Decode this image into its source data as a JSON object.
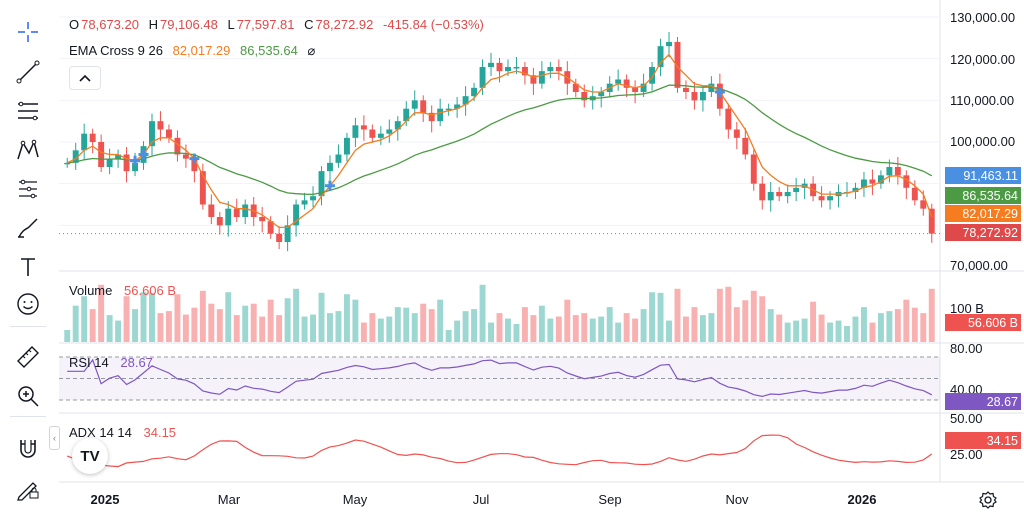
{
  "legend": {
    "ohlc": [
      {
        "key": "O",
        "value": "78,673.20"
      },
      {
        "key": "H",
        "value": "79,106.48"
      },
      {
        "key": "L",
        "value": "77,597.81"
      },
      {
        "key": "C",
        "value": "78,272.92"
      }
    ],
    "change": "-415.84 (−0.53%)",
    "ema_name": "EMA Cross 9 26",
    "ema_fast": "82,017.29",
    "ema_slow": "86,535.64",
    "ema_extra": "⌀",
    "volume_name": "Volume",
    "volume_value": "56.606 B",
    "rsi_name": "RSI 14",
    "rsi_value": "28.67",
    "adx_name": "ADX 14 14",
    "adx_value": "34.15"
  },
  "price_axis": [
    "130,000.00",
    "120,000.00",
    "110,000.00",
    "100,000.00",
    "70,000.00"
  ],
  "price_tags": [
    {
      "value": "91,463.11",
      "color": "#4a90e2"
    },
    {
      "value": "86,535.64",
      "color": "#4c9a44"
    },
    {
      "value": "82,017.29",
      "color": "#f57c1f"
    },
    {
      "value": "78,272.92",
      "color": "#e04949"
    }
  ],
  "volume_axis": {
    "label": "100 B",
    "tag": "56.606 B"
  },
  "rsi_axis": {
    "top": "80.00",
    "mid": "40.00",
    "tag": "28.67"
  },
  "adx_axis": {
    "mid": "25.00",
    "low": "50.00",
    "tag": "34.15"
  },
  "x_axis": [
    {
      "label": "2025",
      "bold": true
    },
    {
      "label": "Mar",
      "bold": false
    },
    {
      "label": "May",
      "bold": false
    },
    {
      "label": "Jul",
      "bold": false
    },
    {
      "label": "Sep",
      "bold": false
    },
    {
      "label": "Nov",
      "bold": false
    },
    {
      "label": "2026",
      "bold": true
    }
  ],
  "logo_text": "TV",
  "colors": {
    "up": "#26a69a",
    "down": "#ef5350",
    "ema_fast": "#f57c1f",
    "ema_slow": "#4c9a44",
    "rsi": "#7e57c2",
    "adx": "#ef5350",
    "cross": "#4a90e2"
  },
  "chart_data": {
    "type": "candlestick",
    "ylim": [
      70000,
      130000
    ],
    "x_labels": [
      "2025",
      "Mar",
      "May",
      "Jul",
      "Sep",
      "Nov",
      "2026"
    ],
    "close": [
      95000,
      98000,
      102000,
      100000,
      94000,
      96000,
      97000,
      93000,
      95000,
      99000,
      105000,
      103000,
      101000,
      97000,
      96000,
      93000,
      85000,
      82000,
      80000,
      84000,
      82000,
      85000,
      82000,
      81000,
      78000,
      76000,
      80000,
      85000,
      86000,
      87000,
      93000,
      95000,
      97000,
      101000,
      104000,
      103000,
      101000,
      102000,
      103000,
      105000,
      108000,
      110000,
      107000,
      105000,
      108000,
      108000,
      109000,
      111000,
      113000,
      118000,
      119000,
      117000,
      118000,
      118000,
      116000,
      114000,
      117000,
      118000,
      117000,
      114000,
      112000,
      110000,
      111000,
      112000,
      114000,
      115000,
      113000,
      112000,
      114000,
      118000,
      123000,
      124000,
      113000,
      112000,
      110000,
      112000,
      114000,
      108000,
      103000,
      101000,
      97000,
      90000,
      86000,
      88000,
      87000,
      88000,
      89000,
      90000,
      87000,
      86000,
      87000,
      88000,
      88000,
      89000,
      91000,
      90000,
      92000,
      94000,
      92000,
      89000,
      86000,
      84000,
      78000
    ],
    "ema_fast": [
      95000,
      96000,
      98000,
      99000,
      97500,
      97000,
      97000,
      96000,
      95500,
      97000,
      100000,
      101000,
      101000,
      99500,
      98000,
      96000,
      92000,
      88500,
      85500,
      85000,
      84000,
      84000,
      83500,
      82500,
      81000,
      79500,
      79500,
      81000,
      82500,
      84000,
      87000,
      89500,
      92000,
      95000,
      98000,
      99500,
      100000,
      100500,
      101500,
      103000,
      105000,
      107000,
      107000,
      106500,
      107000,
      107500,
      108000,
      109000,
      110500,
      113000,
      115000,
      115500,
      116500,
      117000,
      116500,
      115500,
      116000,
      116500,
      116500,
      115500,
      114000,
      112500,
      112000,
      112000,
      113000,
      114000,
      113500,
      113000,
      113500,
      115500,
      119000,
      121000,
      118000,
      116000,
      114000,
      113500,
      113500,
      112000,
      109000,
      106000,
      103000,
      98500,
      94000,
      92000,
      90500,
      89500,
      89500,
      89500,
      88500,
      87500,
      87500,
      87500,
      87800,
      88200,
      89200,
      89500,
      90500,
      91800,
      91900,
      91000,
      89500,
      87500,
      82017
    ]
  }
}
